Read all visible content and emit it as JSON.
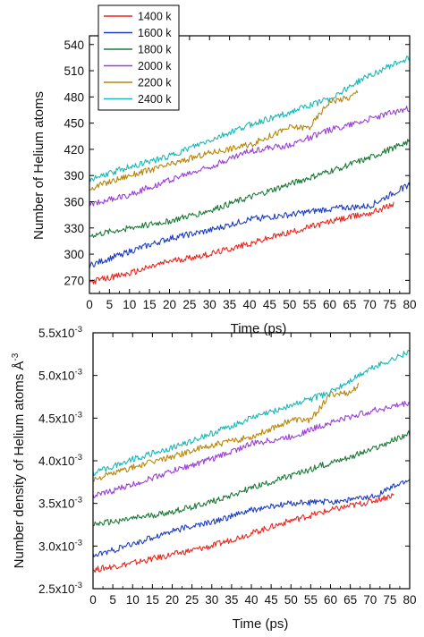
{
  "chart_data": [
    {
      "type": "line",
      "title": "",
      "xlabel": "Time (ps)",
      "ylabel": "Number of Helium atoms",
      "xlim": [
        0,
        80
      ],
      "ylim": [
        255,
        550
      ],
      "xticks": [
        0,
        5,
        10,
        15,
        20,
        25,
        30,
        35,
        40,
        45,
        50,
        55,
        60,
        65,
        70,
        75,
        80
      ],
      "yticks": [
        270,
        300,
        330,
        360,
        390,
        420,
        450,
        480,
        510,
        540
      ],
      "ytick_labels": [
        "270",
        "300",
        "330",
        "360",
        "390",
        "420",
        "450",
        "480",
        "510",
        "540"
      ],
      "legend_position": "top-left",
      "grid": false,
      "series": [
        {
          "name": "1400 k",
          "color": "#e8271f",
          "x": [
            0,
            10,
            20,
            30,
            40,
            50,
            60,
            70,
            76
          ],
          "values": [
            268,
            278,
            292,
            300,
            312,
            325,
            337,
            347,
            357
          ]
        },
        {
          "name": "1600 k",
          "color": "#1f3fbf",
          "x": [
            0,
            10,
            20,
            30,
            40,
            50,
            60,
            70,
            80
          ],
          "values": [
            287,
            303,
            318,
            327,
            340,
            345,
            352,
            355,
            380
          ]
        },
        {
          "name": "1800 k",
          "color": "#1f7a3a",
          "x": [
            0,
            10,
            20,
            30,
            40,
            50,
            60,
            70,
            80
          ],
          "values": [
            321,
            330,
            338,
            350,
            365,
            380,
            395,
            410,
            430
          ]
        },
        {
          "name": "2000 k",
          "color": "#9b3fd6",
          "x": [
            0,
            10,
            20,
            30,
            40,
            50,
            60,
            70,
            80
          ],
          "values": [
            357,
            368,
            385,
            400,
            418,
            425,
            442,
            455,
            467
          ]
        },
        {
          "name": "2200 k",
          "color": "#b8860b",
          "x": [
            0,
            10,
            20,
            30,
            40,
            50,
            55,
            60,
            65,
            67
          ],
          "values": [
            375,
            390,
            402,
            416,
            425,
            445,
            445,
            475,
            479,
            486
          ]
        },
        {
          "name": "2400 k",
          "color": "#1cb8b8",
          "x": [
            0,
            10,
            20,
            30,
            40,
            50,
            60,
            70,
            80
          ],
          "values": [
            385,
            400,
            412,
            430,
            448,
            462,
            478,
            505,
            525
          ]
        }
      ]
    },
    {
      "type": "line",
      "title": "",
      "xlabel": "Time (ps)",
      "ylabel": "Number density of Helium atoms",
      "ylabel_unit": "Å",
      "ylabel_unit_exponent": "-3",
      "xlim": [
        0,
        80
      ],
      "ylim": [
        0.0025,
        0.0055
      ],
      "xticks": [
        0,
        5,
        10,
        15,
        20,
        25,
        30,
        35,
        40,
        45,
        50,
        55,
        60,
        65,
        70,
        75,
        80
      ],
      "yticks": [
        0.0025,
        0.003,
        0.0035,
        0.004,
        0.0045,
        0.005,
        0.0055
      ],
      "ytick_labels": [
        {
          "mantissa": "2.5x10",
          "exponent": "-3"
        },
        {
          "mantissa": "3.0x10",
          "exponent": "-3"
        },
        {
          "mantissa": "3.5x10",
          "exponent": "-3"
        },
        {
          "mantissa": "4.0x10",
          "exponent": "-3"
        },
        {
          "mantissa": "4.5x10",
          "exponent": "-3"
        },
        {
          "mantissa": "5.0x10",
          "exponent": "-3"
        },
        {
          "mantissa": "5.5x10",
          "exponent": "-3"
        }
      ],
      "grid": false,
      "series": [
        {
          "name": "1400 k",
          "color": "#e8271f",
          "x": [
            0,
            10,
            20,
            30,
            40,
            50,
            60,
            70,
            76
          ],
          "values": [
            0.00272,
            0.0028,
            0.0029,
            0.003,
            0.00315,
            0.0033,
            0.00342,
            0.00352,
            0.0036
          ]
        },
        {
          "name": "1600 k",
          "color": "#1f3fbf",
          "x": [
            0,
            10,
            20,
            30,
            40,
            50,
            60,
            70,
            80
          ],
          "values": [
            0.00288,
            0.00302,
            0.00318,
            0.00328,
            0.00342,
            0.0035,
            0.00352,
            0.00357,
            0.00378
          ]
        },
        {
          "name": "1800 k",
          "color": "#1f7a3a",
          "x": [
            0,
            10,
            20,
            30,
            40,
            50,
            60,
            70,
            80
          ],
          "values": [
            0.00325,
            0.00332,
            0.0034,
            0.00352,
            0.00368,
            0.00382,
            0.00398,
            0.00412,
            0.00432
          ]
        },
        {
          "name": "2000 k",
          "color": "#9b3fd6",
          "x": [
            0,
            10,
            20,
            30,
            40,
            50,
            60,
            70,
            80
          ],
          "values": [
            0.00358,
            0.00372,
            0.00388,
            0.00402,
            0.0042,
            0.00428,
            0.00445,
            0.00458,
            0.00468
          ]
        },
        {
          "name": "2200 k",
          "color": "#b8860b",
          "x": [
            0,
            10,
            20,
            30,
            40,
            50,
            55,
            60,
            65,
            67
          ],
          "values": [
            0.00378,
            0.00392,
            0.00405,
            0.00418,
            0.00428,
            0.00448,
            0.00448,
            0.00478,
            0.0048,
            0.00488
          ]
        },
        {
          "name": "2400 k",
          "color": "#1cb8b8",
          "x": [
            0,
            10,
            20,
            30,
            40,
            50,
            60,
            70,
            80
          ],
          "values": [
            0.00385,
            0.00402,
            0.00415,
            0.00432,
            0.0045,
            0.00465,
            0.0048,
            0.00508,
            0.00528
          ]
        }
      ]
    }
  ]
}
